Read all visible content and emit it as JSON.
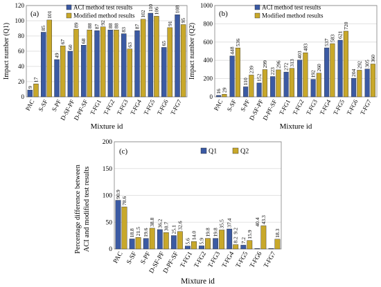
{
  "colors": {
    "blue": "#3b5aa3",
    "gold": "#c8a82a",
    "grid": "#d9d9d9",
    "axis": "#000000"
  },
  "chart_data": [
    {
      "type": "bar",
      "title": "(a)",
      "xlabel": "Mixture id",
      "ylabel": "Impact number (Q1)",
      "ylim": [
        0,
        120
      ],
      "yticks": [
        0,
        20,
        40,
        60,
        80,
        100,
        120
      ],
      "grid": true,
      "legend": "top-left",
      "categories": [
        "PAC",
        "S-SF",
        "S-PF",
        "D-SF-PF",
        "D-PF-SF",
        "T-FG1",
        "T-FG2",
        "T-FG3",
        "T-FG4",
        "T-FG5",
        "T-FG6",
        "T-FG7"
      ],
      "series": [
        {
          "name": "ACI method test results",
          "values": [
            9,
            85,
            49,
            60,
            68,
            87,
            88,
            83,
            87,
            110,
            65,
            108
          ]
        },
        {
          "name": "Modified method results",
          "values": [
            17,
            101,
            67,
            89,
            88,
            92,
            88,
            63,
            102,
            106,
            91,
            95
          ]
        }
      ]
    },
    {
      "type": "bar",
      "title": "(b)",
      "xlabel": "Mixture id",
      "ylabel": "Impact number (Q2)",
      "ylim": [
        0,
        1000
      ],
      "yticks": [
        0,
        200,
        400,
        600,
        800,
        1000
      ],
      "grid": true,
      "legend": "top-left",
      "categories": [
        "PAC",
        "S-SF",
        "S-PF",
        "D-SF-PF",
        "D-PF-SF",
        "T-FG1",
        "T-FG2",
        "T-FG3",
        "T-FG4",
        "T-FG5",
        "T-FG6",
        "T-FG7"
      ],
      "series": [
        {
          "name": "ACI method test results",
          "values": [
            16,
            448,
            110,
            152,
            223,
            272,
            403,
            192,
            537,
            621,
            204,
            305
          ]
        },
        {
          "name": "Modified method results",
          "values": [
            29,
            536,
            239,
            299,
            296,
            313,
            483,
            260,
            583,
            720,
            292,
            360
          ]
        }
      ]
    },
    {
      "type": "bar",
      "title": "(c)",
      "xlabel": "Mixture id",
      "ylabel": "Percentage difference between ACI and modified test results",
      "ylim": [
        0,
        200
      ],
      "yticks": [
        0,
        50,
        100,
        150,
        200
      ],
      "grid": true,
      "legend": "top-right",
      "categories": [
        "PAC",
        "S-SF",
        "S-PF",
        "D-SF-PF",
        "D-PF-SF",
        "T-FG1",
        "T-FG2",
        "T-FG3",
        "T-FG4",
        "T-FG5",
        "T-FG6",
        "T-FG7"
      ],
      "series": [
        {
          "name": "Q1",
          "values": [
            90.9,
            18.8,
            19.6,
            36.2,
            25.1,
            5.6,
            5.9,
            19.8,
            37.4,
            7.2,
            0.9,
            0.9
          ]
        },
        {
          "name": "Q2",
          "values": [
            78.6,
            21.5,
            38.8,
            30.7,
            32.6,
            14.0,
            19.8,
            35.5,
            8.2,
            15.9,
            43.3,
            18.3
          ]
        }
      ],
      "value_labels": [
        [
          "90.9",
          "18.8",
          "19.6",
          "36.2",
          "25.1",
          "5.6",
          "5.9",
          "19.8",
          "37.4",
          "7.2",
          "",
          ""
        ],
        [
          "78.6",
          "21.5",
          "38.8",
          "30.7",
          "32.6",
          "14.0",
          "19.8",
          "35.5",
          "8.2",
          "15.9",
          "43.3",
          "18.3"
        ]
      ],
      "extra_labels": [
        "9.2",
        "40.4"
      ]
    }
  ]
}
